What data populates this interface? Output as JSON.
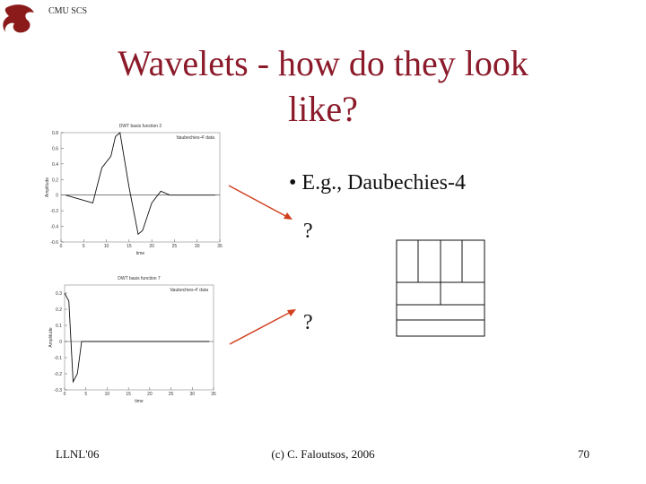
{
  "header": {
    "org": "CMU SCS",
    "title_lines": [
      "Wavelets - how do they look",
      "like?"
    ]
  },
  "bullet": "• E.g., Daubechies-4",
  "questions": [
    "?",
    "?"
  ],
  "figures": [
    {
      "title": "DWT basis function 2",
      "xlabel": "time",
      "ylabel": "Amplitude",
      "legend": "'daubechies-4' data",
      "x": [
        1,
        4,
        7,
        9,
        11,
        12,
        13,
        15,
        17,
        18,
        20,
        22,
        24,
        26,
        28,
        30,
        32,
        34
      ],
      "values": [
        0,
        -0.05,
        -0.1,
        0.35,
        0.5,
        0.75,
        0.8,
        0.1,
        -0.5,
        -0.45,
        -0.1,
        0.05,
        0,
        0,
        0,
        0,
        0,
        0
      ],
      "xlim": [
        0,
        35
      ],
      "ylim": [
        -0.6,
        0.8
      ],
      "xticks": [
        0,
        5,
        10,
        15,
        20,
        25,
        30,
        35
      ],
      "yticks": [
        -0.6,
        -0.4,
        -0.2,
        0,
        0.2,
        0.4,
        0.6,
        0.8
      ]
    },
    {
      "title": "DWT basis function 7",
      "xlabel": "time",
      "ylabel": "Amplitude",
      "legend": "'daubechies-4' data",
      "x": [
        0,
        1,
        2,
        3,
        4,
        6,
        8,
        10,
        12,
        14,
        16,
        18,
        20,
        22,
        24,
        26,
        28,
        30,
        32,
        34
      ],
      "values": [
        0.3,
        0.25,
        -0.25,
        -0.2,
        0,
        0,
        0,
        0,
        0,
        0,
        0,
        0,
        0,
        0,
        0,
        0,
        0,
        0,
        0,
        0
      ],
      "xlim": [
        0,
        35
      ],
      "ylim": [
        -0.3,
        0.35
      ],
      "xticks": [
        0,
        5,
        10,
        15,
        20,
        25,
        30,
        35
      ],
      "yticks": [
        -0.3,
        -0.2,
        -0.1,
        0,
        0.1,
        0.2,
        0.3
      ]
    }
  ],
  "footer": {
    "left": "LLNL'06",
    "center": "(c) C. Faloutsos, 2006",
    "right": "70"
  }
}
